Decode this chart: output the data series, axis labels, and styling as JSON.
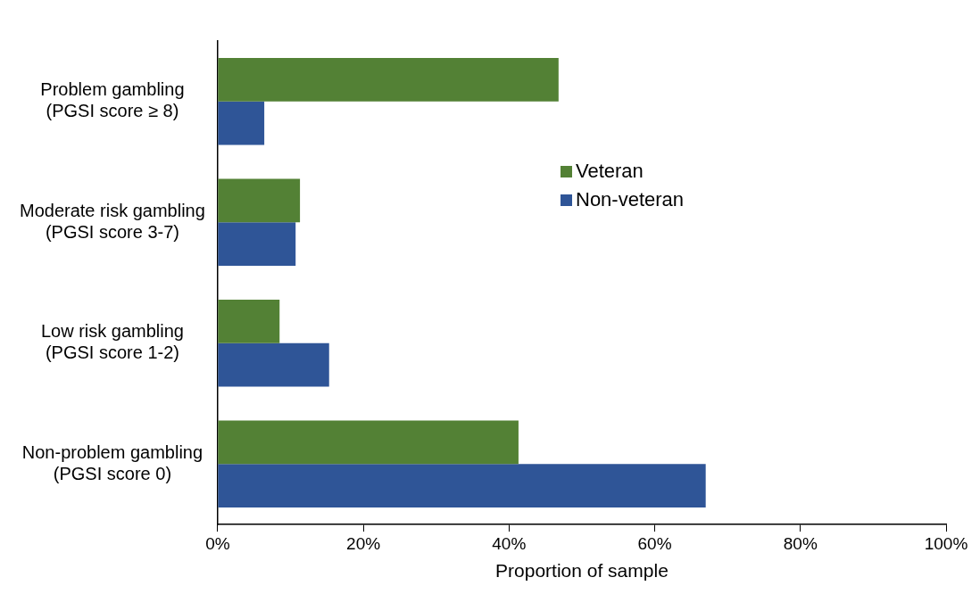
{
  "chart_data": {
    "type": "bar",
    "orientation": "horizontal",
    "xlabel": "Proportion of sample",
    "categories": [
      "Problem gambling\n(PGSI score ≥ 8)",
      "Moderate risk gambling\n(PGSI score 3-7)",
      "Low risk gambling\n(PGSI score 1-2)",
      "Non-problem gambling\n(PGSI score 0)"
    ],
    "series": [
      {
        "name": "Veteran",
        "color": "#538135",
        "values": [
          46.8,
          11.3,
          8.5,
          41.3
        ]
      },
      {
        "name": "Non-veteran",
        "color": "#2f5597",
        "values": [
          6.4,
          10.7,
          15.3,
          67.0
        ]
      }
    ],
    "xlim": [
      0,
      100
    ],
    "xticks": [
      {
        "value": 0,
        "label": "0%"
      },
      {
        "value": 20,
        "label": "20%"
      },
      {
        "value": 40,
        "label": "40%"
      },
      {
        "value": 60,
        "label": "60%"
      },
      {
        "value": 80,
        "label": "80%"
      },
      {
        "value": 100,
        "label": "100%"
      }
    ],
    "grid": false,
    "legend": "center"
  }
}
